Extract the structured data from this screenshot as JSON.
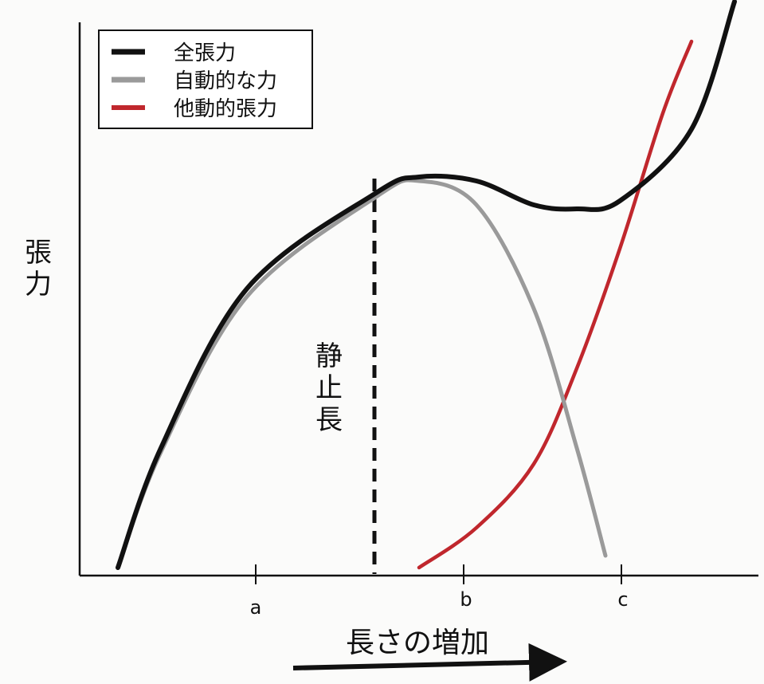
{
  "chart_data": {
    "type": "line",
    "ylabel": "張力",
    "xlabel": "長さの増加",
    "x_ticks": [
      "a",
      "b",
      "c"
    ],
    "annotation": "静止長",
    "legend": {
      "position": "top-left",
      "entries": [
        "全張力",
        "自動的な力",
        "他動的張力"
      ]
    },
    "axes": {
      "x_arrow": true,
      "y_ticks": false,
      "grid": false
    },
    "series": [
      {
        "name": "全張力",
        "color": "#111111",
        "points": [
          [
            0.1,
            0.0
          ],
          [
            0.4,
            0.3
          ],
          [
            1.0,
            0.7
          ],
          [
            1.9,
            0.94
          ],
          [
            2.2,
            0.98
          ],
          [
            2.6,
            0.97
          ],
          [
            3.0,
            0.91
          ],
          [
            3.3,
            0.9
          ],
          [
            3.6,
            0.92
          ],
          [
            4.1,
            1.1
          ],
          [
            4.4,
            1.42
          ]
        ]
      },
      {
        "name": "自動的な力",
        "color": "#9a9a9a",
        "points": [
          [
            0.1,
            0.0
          ],
          [
            0.4,
            0.29
          ],
          [
            1.0,
            0.68
          ],
          [
            1.9,
            0.93
          ],
          [
            2.2,
            0.97
          ],
          [
            2.6,
            0.91
          ],
          [
            3.0,
            0.65
          ],
          [
            3.3,
            0.3
          ],
          [
            3.5,
            0.03
          ]
        ]
      },
      {
        "name": "他動的張力",
        "color": "#c0272d",
        "points": [
          [
            2.2,
            0.0
          ],
          [
            2.6,
            0.1
          ],
          [
            3.0,
            0.26
          ],
          [
            3.3,
            0.5
          ],
          [
            3.6,
            0.8
          ],
          [
            3.9,
            1.14
          ],
          [
            4.1,
            1.32
          ]
        ]
      }
    ]
  }
}
